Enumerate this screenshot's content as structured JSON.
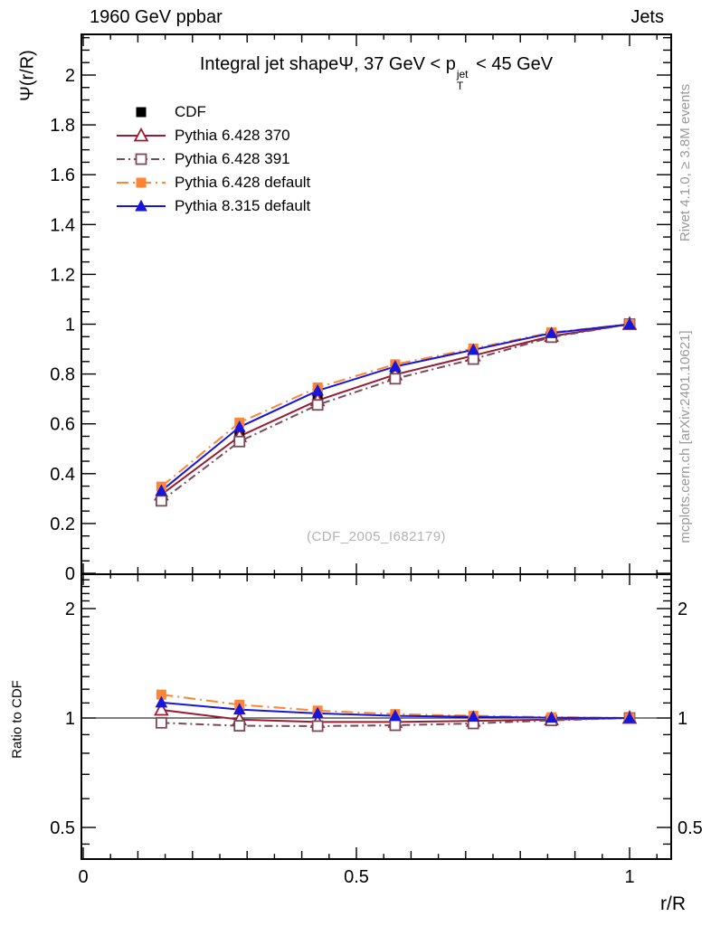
{
  "header": {
    "left": "1960 GeV ppbar",
    "right": "Jets"
  },
  "title": {
    "t1": "Integral jet shapeΨ, 37 GeV < p",
    "sup": "jet",
    "sub": "T",
    "t2": " < 45 GeV"
  },
  "labels": {
    "ylabel_main": "Ψ(r/R)",
    "ylabel_ratio": "Ratio to CDF",
    "xlabel": "r/R"
  },
  "watermark": "(CDF_2005_I682179)",
  "side_notes": {
    "top": "Rivet 4.1.0, ≥ 3.8M events",
    "bottom": "mcplots.cern.ch [arXiv:2401.10621]"
  },
  "chart_data": {
    "type": "line",
    "title": "Integral jet shape Ψ, 37 GeV < p_T^jet < 45 GeV",
    "xlabel": "r/R",
    "ylabel": "Ψ(r/R)",
    "ratio_ylabel": "Ratio to CDF",
    "legend_position": "top-left",
    "grid": false,
    "x": [
      0.143,
      0.286,
      0.429,
      0.571,
      0.714,
      0.857,
      1.0
    ],
    "xlim": [
      0,
      1.076
    ],
    "main_ylim": [
      0,
      2.16
    ],
    "ratio_ylim": [
      0.41,
      2.42
    ],
    "ratio_scale": "log",
    "x_ticks": {
      "values": [
        0,
        0.5,
        1
      ],
      "labels": [
        "0",
        "0.5",
        "1"
      ]
    },
    "main_y_ticks": {
      "values": [
        0,
        0.2,
        0.4,
        0.6,
        0.8,
        1,
        1.2,
        1.4,
        1.6,
        1.8,
        2
      ],
      "labels": [
        "0",
        "0.2",
        "0.4",
        "0.6",
        "0.8",
        "1",
        "1.2",
        "1.4",
        "1.6",
        "1.8",
        "2"
      ]
    },
    "ratio_y_ticks": {
      "values": [
        0.5,
        1,
        2
      ],
      "labels": [
        "0.5",
        "1",
        "2"
      ]
    },
    "series": [
      {
        "name": "CDF",
        "color": "#000000",
        "marker": "square-filled",
        "line": "none",
        "values": [
          0.3,
          0.556,
          0.712,
          0.818,
          0.89,
          0.962,
          1.0
        ],
        "ratio": null
      },
      {
        "name": "Pythia 6.428 370",
        "color": "#9a1b30",
        "marker": "triangle-open",
        "line": "solid",
        "values": [
          0.316,
          0.55,
          0.694,
          0.798,
          0.874,
          0.952,
          1.0
        ],
        "ratio": [
          1.053,
          0.99,
          0.975,
          0.975,
          0.982,
          0.99,
          1.0
        ]
      },
      {
        "name": "Pythia 6.428 391",
        "color": "#7a4a58",
        "marker": "square-open",
        "line": "dashdot",
        "values": [
          0.291,
          0.529,
          0.676,
          0.781,
          0.86,
          0.948,
          1.0
        ],
        "ratio": [
          0.97,
          0.952,
          0.95,
          0.955,
          0.966,
          0.985,
          1.0
        ]
      },
      {
        "name": "Pythia 6.428 default",
        "color": "#ff8433",
        "marker": "square-filled",
        "line": "longdashdot",
        "values": [
          0.348,
          0.605,
          0.746,
          0.839,
          0.902,
          0.967,
          1.0
        ],
        "ratio": [
          1.16,
          1.088,
          1.048,
          1.025,
          1.014,
          1.005,
          1.0
        ]
      },
      {
        "name": "Pythia 8.315 default",
        "color": "#1616dd",
        "marker": "triangle-filled",
        "line": "solid",
        "values": [
          0.331,
          0.587,
          0.733,
          0.83,
          0.897,
          0.964,
          1.0
        ],
        "ratio": [
          1.103,
          1.055,
          1.03,
          1.014,
          1.008,
          1.002,
          1.0
        ]
      }
    ]
  }
}
